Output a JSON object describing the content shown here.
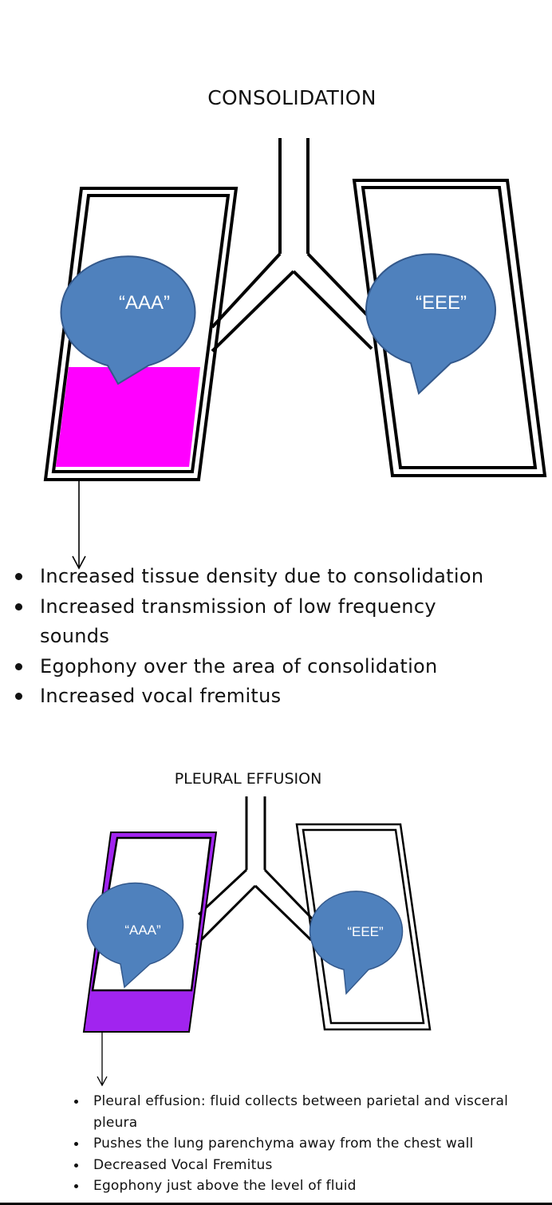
{
  "colors": {
    "bubble": "#4f81bd",
    "consolidation_fill": "#ff00ff",
    "effusion_fill": "#a124ef",
    "outline": "#000000"
  },
  "consolidation": {
    "title": "CONSOLIDATION",
    "left_lung_label": "“AAA”",
    "right_lung_label": "“EEE”",
    "bullets": [
      "Increased tissue density due to consolidation",
      "Increased transmission of low frequency sounds",
      "Egophony over the area of consolidation",
      "Increased vocal fremitus"
    ]
  },
  "pleural_effusion": {
    "title": "PLEURAL EFFUSION",
    "left_lung_label": "“AAA”",
    "right_lung_label": "“EEE”",
    "bullets": [
      "Pleural effusion: fluid collects between parietal and visceral pleura",
      "Pushes the lung parenchyma away from the chest wall",
      "Decreased  Vocal Fremitus",
      "Egophony just above the level of fluid"
    ]
  }
}
